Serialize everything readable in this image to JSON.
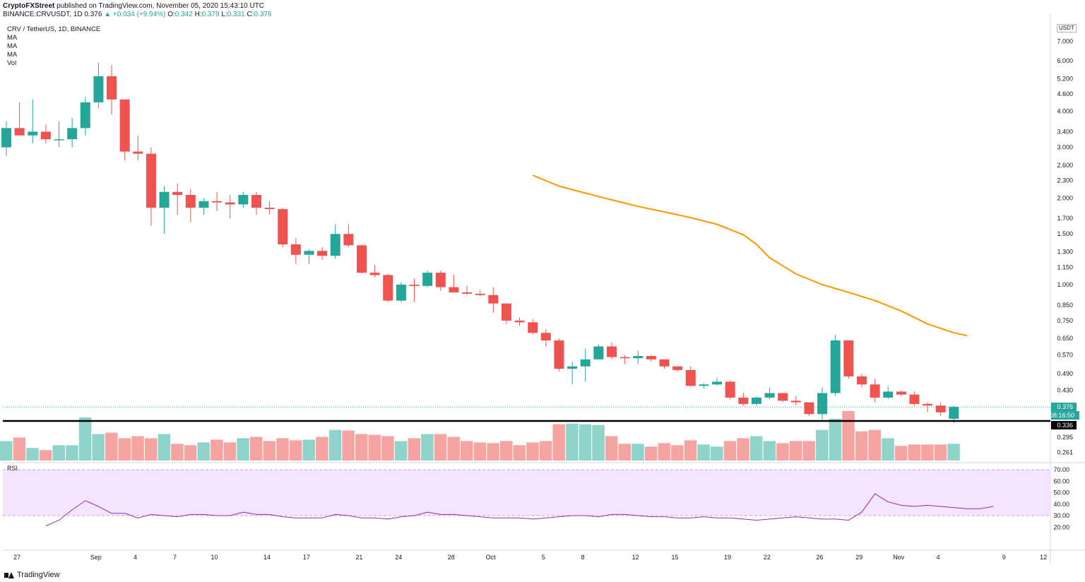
{
  "header": {
    "publisher": "CryptoFXStreet",
    "published_text": "published on TradingView.com, November 05, 2020 15:43:10 UTC",
    "symbol": "BINANCE:CRVUSDT, 1D",
    "last": "0.376",
    "change": "▲ +0.034 (+9.94%)",
    "o_label": "O:",
    "o": "0.342",
    "h_label": "H:",
    "h": "0.379",
    "l_label": "L:",
    "l": "0.331",
    "c_label": "C:",
    "c": "0.376"
  },
  "legend": {
    "title": "CRV / TetherUS, 1D, BINANCE",
    "items": [
      "MA",
      "MA",
      "MA",
      "Vol"
    ]
  },
  "footer": {
    "brand": "TradingView"
  },
  "colors": {
    "up": "#26a69a",
    "down": "#ef5350",
    "ma": "#ff9800",
    "vol_up": "#8fd3cb",
    "vol_down": "#f5a4a2",
    "rsi_band": "#f3e5fd",
    "rsi_line": "#9c27b0",
    "support": "#000000"
  },
  "chart_data": {
    "type": "candlestick",
    "title": "CRV / TetherUS, 1D, BINANCE",
    "price_scale": "log",
    "price_axis_unit": "USDT",
    "price_axis_labels": [
      "7.000",
      "6.000",
      "5.200",
      "4.600",
      "4.000",
      "3.400",
      "3.000",
      "2.600",
      "2.300",
      "2.000",
      "1.700",
      "1.500",
      "1.300",
      "1.150",
      "1.000",
      "0.850",
      "0.750",
      "0.650",
      "0.570",
      "0.490",
      "0.430",
      "0.376",
      "0.336",
      "0.295",
      "0.261"
    ],
    "x_tick_labels": [
      "27",
      "Sep",
      "4",
      "7",
      "10",
      "14",
      "17",
      "21",
      "24",
      "28",
      "Oct",
      "5",
      "8",
      "12",
      "15",
      "19",
      "22",
      "26",
      "29",
      "Nov",
      "4",
      "9",
      "12"
    ],
    "last_price_label": "0.376",
    "countdown_label": "08:16:50",
    "support_label": "0.336",
    "support_level": 0.336,
    "candles": [
      [
        3.0,
        3.7,
        2.8,
        3.5
      ],
      [
        3.5,
        4.3,
        3.3,
        3.3
      ],
      [
        3.3,
        4.4,
        3.1,
        3.4
      ],
      [
        3.4,
        3.6,
        3.1,
        3.2
      ],
      [
        3.2,
        3.7,
        3.0,
        3.2
      ],
      [
        3.2,
        3.8,
        3.0,
        3.5
      ],
      [
        3.5,
        4.5,
        3.3,
        4.3
      ],
      [
        4.3,
        5.9,
        4.1,
        5.3
      ],
      [
        5.3,
        5.8,
        3.9,
        4.4
      ],
      [
        4.4,
        4.4,
        2.7,
        2.9
      ],
      [
        2.9,
        3.3,
        2.7,
        2.85
      ],
      [
        2.85,
        3.0,
        1.6,
        1.85
      ],
      [
        1.85,
        2.2,
        1.5,
        2.1
      ],
      [
        2.1,
        2.25,
        1.75,
        2.05
      ],
      [
        2.05,
        2.15,
        1.65,
        1.85
      ],
      [
        1.85,
        2.0,
        1.75,
        1.95
      ],
      [
        1.95,
        2.1,
        1.8,
        1.93
      ],
      [
        1.93,
        2.05,
        1.7,
        1.9
      ],
      [
        1.9,
        2.1,
        1.85,
        2.05
      ],
      [
        2.05,
        2.1,
        1.75,
        1.85
      ],
      [
        1.85,
        1.95,
        1.75,
        1.83
      ],
      [
        1.83,
        1.85,
        1.35,
        1.38
      ],
      [
        1.38,
        1.45,
        1.18,
        1.27
      ],
      [
        1.27,
        1.33,
        1.18,
        1.31
      ],
      [
        1.31,
        1.35,
        1.22,
        1.26
      ],
      [
        1.26,
        1.62,
        1.23,
        1.5
      ],
      [
        1.5,
        1.62,
        1.35,
        1.37
      ],
      [
        1.37,
        1.38,
        1.09,
        1.1
      ],
      [
        1.1,
        1.17,
        1.06,
        1.08
      ],
      [
        1.08,
        1.09,
        0.87,
        0.88
      ],
      [
        0.88,
        1.02,
        0.87,
        1.0
      ],
      [
        1.0,
        1.05,
        0.87,
        0.99
      ],
      [
        0.99,
        1.12,
        0.98,
        1.1
      ],
      [
        1.1,
        1.12,
        0.95,
        0.98
      ],
      [
        0.98,
        1.08,
        0.96,
        0.94
      ],
      [
        0.94,
        0.99,
        0.92,
        0.93
      ],
      [
        0.93,
        0.96,
        0.91,
        0.92
      ],
      [
        0.92,
        0.98,
        0.8,
        0.86
      ],
      [
        0.86,
        0.86,
        0.73,
        0.75
      ],
      [
        0.75,
        0.77,
        0.72,
        0.74
      ],
      [
        0.74,
        0.76,
        0.67,
        0.68
      ],
      [
        0.68,
        0.7,
        0.61,
        0.64
      ],
      [
        0.64,
        0.65,
        0.5,
        0.51
      ],
      [
        0.51,
        0.54,
        0.45,
        0.52
      ],
      [
        0.52,
        0.6,
        0.46,
        0.55
      ],
      [
        0.55,
        0.62,
        0.55,
        0.61
      ],
      [
        0.61,
        0.63,
        0.55,
        0.56
      ],
      [
        0.56,
        0.57,
        0.53,
        0.555
      ],
      [
        0.555,
        0.59,
        0.53,
        0.565
      ],
      [
        0.565,
        0.57,
        0.54,
        0.55
      ],
      [
        0.55,
        0.55,
        0.51,
        0.52
      ],
      [
        0.52,
        0.51,
        0.5,
        0.505
      ],
      [
        0.505,
        0.52,
        0.44,
        0.445
      ],
      [
        0.445,
        0.455,
        0.435,
        0.45
      ],
      [
        0.45,
        0.475,
        0.445,
        0.46
      ],
      [
        0.46,
        0.465,
        0.4,
        0.405
      ],
      [
        0.405,
        0.42,
        0.38,
        0.385
      ],
      [
        0.385,
        0.41,
        0.38,
        0.405
      ],
      [
        0.405,
        0.44,
        0.4,
        0.42
      ],
      [
        0.42,
        0.42,
        0.39,
        0.395
      ],
      [
        0.395,
        0.41,
        0.38,
        0.39
      ],
      [
        0.39,
        0.39,
        0.35,
        0.355
      ],
      [
        0.355,
        0.44,
        0.34,
        0.42
      ],
      [
        0.42,
        0.67,
        0.41,
        0.64
      ],
      [
        0.64,
        0.64,
        0.47,
        0.48
      ],
      [
        0.48,
        0.49,
        0.44,
        0.45
      ],
      [
        0.45,
        0.47,
        0.39,
        0.405
      ],
      [
        0.405,
        0.445,
        0.4,
        0.425
      ],
      [
        0.425,
        0.43,
        0.41,
        0.415
      ],
      [
        0.415,
        0.425,
        0.38,
        0.385
      ],
      [
        0.385,
        0.39,
        0.36,
        0.38
      ],
      [
        0.38,
        0.39,
        0.35,
        0.36
      ],
      [
        0.342,
        0.379,
        0.331,
        0.376
      ]
    ],
    "volume": [
      28,
      33,
      18,
      15,
      22,
      22,
      62,
      38,
      40,
      32,
      35,
      32,
      38,
      24,
      22,
      26,
      30,
      26,
      32,
      34,
      28,
      32,
      29,
      30,
      34,
      44,
      43,
      38,
      37,
      35,
      28,
      32,
      38,
      38,
      34,
      28,
      26,
      25,
      28,
      22,
      26,
      28,
      52,
      53,
      52,
      51,
      35,
      24,
      24,
      20,
      25,
      22,
      29,
      23,
      20,
      28,
      32,
      35,
      28,
      25,
      28,
      28,
      44,
      60,
      71,
      42,
      44,
      32,
      21,
      23,
      23,
      23,
      24
    ],
    "ma_series": [
      [
        40,
        2.4
      ],
      [
        42,
        2.2
      ],
      [
        44,
        2.08
      ],
      [
        46,
        1.97
      ],
      [
        48,
        1.87
      ],
      [
        50,
        1.79
      ],
      [
        52,
        1.71
      ],
      [
        54,
        1.62
      ],
      [
        56,
        1.49
      ],
      [
        57,
        1.38
      ],
      [
        58,
        1.24
      ],
      [
        60,
        1.09
      ],
      [
        62,
        1.0
      ],
      [
        64,
        0.94
      ],
      [
        66,
        0.88
      ],
      [
        68,
        0.81
      ],
      [
        70,
        0.73
      ],
      [
        72,
        0.68
      ],
      [
        73,
        0.665
      ]
    ],
    "rsi": {
      "label": "RSI",
      "axis_labels": [
        "70.00",
        "60.00",
        "50.00",
        "40.00",
        "30.00",
        "20.00"
      ],
      "band": [
        30,
        70
      ],
      "values": [
        21,
        26,
        35,
        43,
        38,
        32,
        32,
        28,
        31,
        30,
        29,
        31,
        31,
        30,
        30,
        33,
        31,
        31,
        29,
        28,
        28,
        28,
        31,
        30,
        28,
        28,
        27,
        29,
        30,
        33,
        31,
        31,
        30,
        29,
        28,
        28,
        28,
        27,
        28,
        29,
        30,
        30,
        29,
        31,
        31,
        30,
        29,
        29,
        28,
        28,
        29,
        28,
        28,
        27,
        26,
        27,
        28,
        29,
        28,
        27,
        27,
        26,
        33,
        49,
        42,
        39,
        38,
        39,
        38,
        37,
        36,
        36,
        38
      ]
    }
  }
}
